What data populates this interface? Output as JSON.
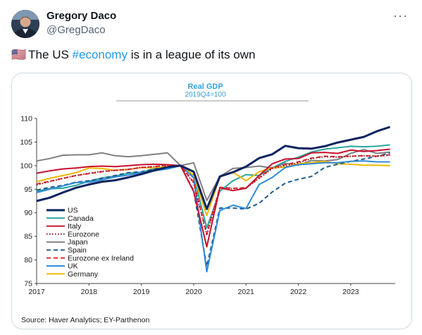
{
  "author": {
    "name": "Gregory Daco",
    "handle": "@GregDaco"
  },
  "menu": {
    "more_label": "···"
  },
  "tweet": {
    "flag": "🇺🇸",
    "prefix": "The US ",
    "hashtag": "#economy",
    "suffix": " is in a league of its own"
  },
  "colors": {
    "accent": "#1d9bf0",
    "chart_title": "#3b9fd8"
  },
  "source": "Source: Haver Analytics; EY-Parthenon",
  "chart_data": {
    "type": "line",
    "title": "Real GDP",
    "subtitle": "2019Q4=100",
    "xlabel": "",
    "ylabel": "",
    "xlim": [
      2017,
      2023.85
    ],
    "ylim": [
      75,
      110
    ],
    "x_ticks": [
      "2017",
      "2018",
      "2019",
      "2020",
      "2021",
      "2022",
      "2023"
    ],
    "y_ticks": [
      75,
      80,
      85,
      90,
      95,
      100,
      105,
      110
    ],
    "legend_position": "lower-left",
    "x": [
      2017,
      2017.25,
      2017.5,
      2017.75,
      2018,
      2018.25,
      2018.5,
      2018.75,
      2019,
      2019.25,
      2019.5,
      2019.75,
      2020,
      2020.25,
      2020.5,
      2020.75,
      2021,
      2021.25,
      2021.5,
      2021.75,
      2022,
      2022.25,
      2022.5,
      2022.75,
      2023,
      2023.25,
      2023.5,
      2023.75
    ],
    "series": [
      {
        "name": "US",
        "color": "#0b2360",
        "dash": "solid",
        "width": 3,
        "values": [
          92.5,
          93.2,
          94.3,
          95.3,
          96.0,
          96.6,
          96.9,
          97.5,
          98.2,
          99.0,
          99.7,
          100.0,
          98.7,
          90.8,
          97.7,
          98.6,
          99.8,
          101.6,
          102.4,
          104.2,
          103.7,
          103.6,
          104.1,
          104.9,
          105.5,
          106.1,
          107.3,
          108.2
        ]
      },
      {
        "name": "Canada",
        "color": "#2aa6a0",
        "dash": "solid",
        "width": 2,
        "values": [
          94.6,
          95.1,
          95.2,
          95.8,
          96.7,
          97.4,
          97.8,
          98.4,
          98.6,
          99.3,
          99.6,
          100.0,
          97.8,
          86.8,
          94.6,
          96.8,
          98.1,
          97.9,
          99.5,
          100.9,
          101.8,
          102.9,
          103.5,
          103.8,
          104.1,
          104.0,
          104.1,
          104.4
        ]
      },
      {
        "name": "Italy",
        "color": "#c8102e",
        "dash": "solid",
        "width": 2,
        "values": [
          98.4,
          98.9,
          99.3,
          99.5,
          99.8,
          99.9,
          99.8,
          100.0,
          100.2,
          100.3,
          100.2,
          100.0,
          94.5,
          82.8,
          95.3,
          94.7,
          95.2,
          97.9,
          100.4,
          101.4,
          101.5,
          102.7,
          102.8,
          102.6,
          103.3,
          103.0,
          103.2,
          103.5
        ]
      },
      {
        "name": "Eurozone",
        "color": "#a0102e",
        "dash": "dot",
        "width": 2,
        "values": [
          95.9,
          96.6,
          97.3,
          97.9,
          98.4,
          98.8,
          99.0,
          99.2,
          99.6,
          99.8,
          100.1,
          100.0,
          96.3,
          85.2,
          95.3,
          95.1,
          95.2,
          97.3,
          99.4,
          100.0,
          100.6,
          101.5,
          101.9,
          101.8,
          102.0,
          102.1,
          102.0,
          102.3
        ]
      },
      {
        "name": "Japan",
        "color": "#808080",
        "dash": "solid",
        "width": 2,
        "values": [
          101.0,
          101.5,
          102.2,
          102.3,
          102.3,
          102.7,
          102.1,
          101.9,
          102.1,
          102.4,
          102.7,
          100.0,
          100.6,
          92.6,
          97.7,
          99.4,
          99.6,
          99.9,
          99.5,
          100.5,
          100.1,
          101.1,
          101.0,
          101.3,
          102.6,
          103.4,
          102.6,
          102.9
        ]
      },
      {
        "name": "Spain",
        "color": "#1f5a8a",
        "dash": "dash",
        "width": 2,
        "values": [
          94.8,
          95.4,
          95.8,
          96.5,
          96.8,
          97.3,
          97.9,
          98.5,
          98.7,
          99.3,
          99.6,
          100.0,
          94.7,
          78.6,
          91.0,
          91.0,
          90.8,
          92.0,
          94.4,
          96.3,
          97.1,
          97.7,
          99.6,
          100.3,
          100.9,
          101.4,
          102.0,
          102.7
        ]
      },
      {
        "name": "Eurozone ex Ireland",
        "color": "#e0302e",
        "dash": "dash",
        "width": 2,
        "values": [
          96.1,
          96.7,
          97.3,
          97.9,
          98.3,
          98.7,
          99.0,
          99.2,
          99.6,
          99.8,
          100.1,
          100.0,
          96.5,
          85.5,
          95.4,
          95.2,
          95.3,
          97.4,
          99.6,
          100.2,
          100.8,
          101.6,
          102.0,
          101.9,
          102.0,
          102.1,
          102.0,
          102.3
        ]
      },
      {
        "name": "UK",
        "color": "#2f8ad8",
        "dash": "solid",
        "width": 2,
        "values": [
          94.3,
          95.0,
          95.7,
          96.4,
          96.5,
          97.0,
          97.6,
          98.0,
          98.5,
          98.9,
          99.3,
          100.0,
          97.4,
          77.5,
          90.5,
          91.6,
          90.9,
          96.0,
          97.5,
          99.6,
          100.2,
          100.4,
          100.6,
          100.6,
          100.9,
          101.0,
          100.8,
          100.8
        ]
      },
      {
        "name": "Germany",
        "color": "#f0b800",
        "dash": "solid",
        "width": 2,
        "values": [
          96.6,
          97.3,
          97.9,
          98.5,
          99.5,
          99.4,
          99.0,
          99.2,
          99.6,
          99.5,
          99.8,
          100.0,
          98.0,
          89.4,
          97.6,
          98.6,
          96.8,
          98.7,
          99.5,
          99.7,
          100.4,
          100.6,
          100.9,
          100.4,
          100.3,
          100.1,
          100.1,
          100.0
        ]
      }
    ]
  }
}
